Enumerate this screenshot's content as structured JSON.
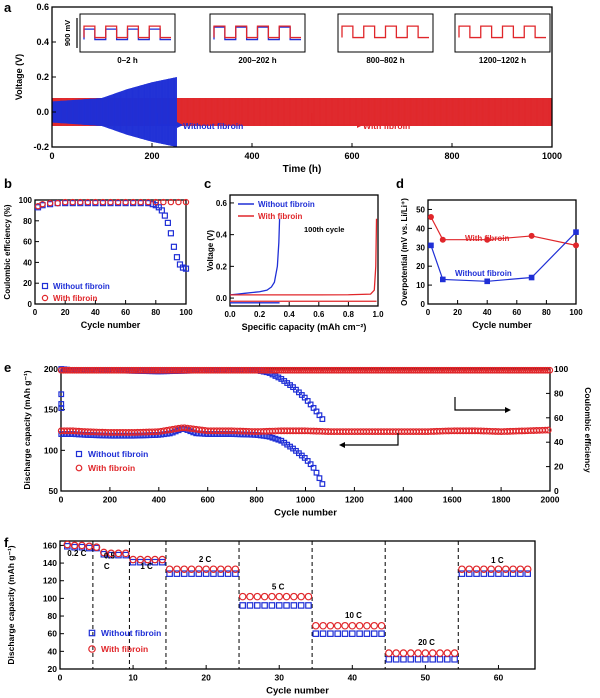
{
  "colors": {
    "without": "#1f2fd6",
    "with": "#e0262a"
  },
  "panels": {
    "a": {
      "letter": "a"
    },
    "b": {
      "letter": "b"
    },
    "c": {
      "letter": "c"
    },
    "d": {
      "letter": "d"
    },
    "e": {
      "letter": "e"
    },
    "f": {
      "letter": "f"
    }
  },
  "chart_data": [
    {
      "id": "a",
      "type": "line",
      "xlabel": "Time (h)",
      "ylabel": "Voltage (V)",
      "xlim": [
        0,
        1000
      ],
      "ylim": [
        -0.2,
        0.6
      ],
      "xticks": [
        "0",
        "200",
        "400",
        "600",
        "800",
        "1000"
      ],
      "yticks": [
        "-0.2",
        "0.0",
        "0.2",
        "0.4",
        "0.6"
      ],
      "series": [
        {
          "name": "Without fibroin",
          "color": "#1f2fd6",
          "x_end": 250,
          "envelope": {
            "x": [
              0,
              100,
              150,
              200,
              250
            ],
            "half_amplitude": [
              0.06,
              0.08,
              0.13,
              0.17,
              0.2
            ]
          }
        },
        {
          "name": "With fibroin",
          "color": "#e0262a",
          "x_end": 1000,
          "envelope": {
            "x": [
              0,
              1000
            ],
            "half_amplitude": [
              0.08,
              0.08
            ]
          }
        }
      ],
      "insets": [
        {
          "label": "0–2 h"
        },
        {
          "label": "200–202 h"
        },
        {
          "label": "800–802 h"
        },
        {
          "label": "1200–1202 h"
        }
      ],
      "inset_scale_label": "900 mV",
      "annotations": [
        "Without fibroin",
        "With fibroin"
      ]
    },
    {
      "id": "b",
      "type": "scatter",
      "xlabel": "Cycle number",
      "ylabel": "Coulombic efficiency (%)",
      "xlim": [
        0,
        100
      ],
      "ylim": [
        0,
        100
      ],
      "xticks": [
        "0",
        "20",
        "40",
        "60",
        "80",
        "100"
      ],
      "yticks": [
        "0",
        "20",
        "40",
        "60",
        "80",
        "100"
      ],
      "legend": [
        "Without fibroin",
        "With fibroin"
      ],
      "series": [
        {
          "name": "Without fibroin",
          "x": [
            2,
            5,
            10,
            15,
            20,
            25,
            30,
            35,
            40,
            45,
            50,
            55,
            60,
            65,
            70,
            75,
            78,
            80,
            82,
            84,
            86,
            88,
            90,
            92,
            94,
            96,
            98,
            100
          ],
          "y": [
            93,
            95,
            96,
            97,
            97,
            97,
            97,
            97,
            97,
            97,
            97,
            97,
            97,
            97,
            97,
            97,
            96,
            95,
            93,
            90,
            85,
            78,
            68,
            55,
            45,
            38,
            35,
            34
          ]
        },
        {
          "name": "With fibroin",
          "x": [
            2,
            5,
            10,
            15,
            20,
            25,
            30,
            35,
            40,
            45,
            50,
            55,
            60,
            65,
            70,
            75,
            80,
            85,
            90,
            95,
            100
          ],
          "y": [
            94,
            96,
            97,
            97,
            98,
            98,
            98,
            98,
            98,
            98,
            98,
            98,
            98,
            98,
            98,
            98,
            98,
            98,
            98,
            98,
            98
          ]
        }
      ]
    },
    {
      "id": "c",
      "type": "line",
      "xlabel": "Specific capacity (mAh cm⁻²)",
      "ylabel": "Voltage (V)",
      "xlim": [
        0,
        1.0
      ],
      "ylim": [
        -0.05,
        0.65
      ],
      "xticks": [
        "0.0",
        "0.2",
        "0.4",
        "0.6",
        "0.8",
        "1.0"
      ],
      "yticks": [
        "0.0",
        "0.2",
        "0.4",
        "0.6"
      ],
      "annotation": "100th cycle",
      "legend": [
        "Without fibroin",
        "With fibroin"
      ],
      "series": [
        {
          "name": "Without fibroin",
          "x": [
            0,
            0.05,
            0.1,
            0.15,
            0.2,
            0.25,
            0.28,
            0.3,
            0.32,
            0.33,
            0.335
          ],
          "y": [
            0.02,
            0.025,
            0.03,
            0.035,
            0.04,
            0.05,
            0.07,
            0.1,
            0.2,
            0.35,
            0.5
          ]
        },
        {
          "name": "With fibroin",
          "x": [
            0,
            0.2,
            0.4,
            0.6,
            0.8,
            0.95,
            0.975,
            0.985,
            0.99
          ],
          "y": [
            0.02,
            0.02,
            0.02,
            0.02,
            0.021,
            0.025,
            0.05,
            0.2,
            0.5
          ]
        },
        {
          "name": "Without fibroin (strip)",
          "x": [
            0,
            0.335
          ],
          "y": [
            -0.03,
            -0.03
          ]
        },
        {
          "name": "With fibroin (strip)",
          "x": [
            0,
            0.99
          ],
          "y": [
            -0.02,
            -0.02
          ]
        }
      ]
    },
    {
      "id": "d",
      "type": "line",
      "xlabel": "Cycle number",
      "ylabel": "Overpotential (mV vs. Li/Li⁺)",
      "xlim": [
        0,
        100
      ],
      "ylim": [
        0,
        55
      ],
      "xticks": [
        "0",
        "20",
        "40",
        "60",
        "80",
        "100"
      ],
      "yticks": [
        "0",
        "10",
        "20",
        "30",
        "40",
        "50"
      ],
      "series": [
        {
          "name": "With fibroin",
          "x": [
            2,
            10,
            40,
            70,
            100
          ],
          "y": [
            46,
            34,
            34,
            36,
            31
          ]
        },
        {
          "name": "Without fibroin",
          "x": [
            2,
            10,
            40,
            70,
            100
          ],
          "y": [
            31,
            13,
            12,
            14,
            38
          ]
        }
      ]
    },
    {
      "id": "e",
      "type": "scatter",
      "xlabel": "Cycle number",
      "ylabel": "Discharge capacity (mAh g⁻¹)",
      "y2label": "Coulombic efficiency",
      "xlim": [
        0,
        2000
      ],
      "ylim": [
        50,
        200
      ],
      "y2lim": [
        0,
        100
      ],
      "xticks": [
        "0",
        "200",
        "400",
        "600",
        "800",
        "1000",
        "1200",
        "1400",
        "1600",
        "1800",
        "2000"
      ],
      "yticks": [
        "50",
        "100",
        "150",
        "200"
      ],
      "y2ticks": [
        "0",
        "20",
        "40",
        "60",
        "80",
        "100"
      ],
      "legend": [
        "Without fibroin",
        "With fibroin"
      ],
      "series": [
        {
          "name": "Without fibroin capacity",
          "x": [
            1,
            50,
            100,
            200,
            300,
            400,
            450,
            500,
            550,
            600,
            700,
            800,
            850,
            900,
            950,
            1000,
            1030,
            1050,
            1070,
            1080
          ],
          "y": [
            120,
            120,
            119,
            118,
            118,
            119,
            121,
            127,
            121,
            120,
            120,
            119,
            117,
            112,
            102,
            90,
            80,
            70,
            58,
            52
          ]
        },
        {
          "name": "With fibroin capacity",
          "x": [
            1,
            50,
            100,
            200,
            300,
            400,
            500,
            600,
            700,
            800,
            900,
            1000,
            1100,
            1200,
            1300,
            1400,
            1500,
            1600,
            1700,
            1800,
            1900,
            2000
          ],
          "y": [
            124,
            124,
            123,
            122,
            122,
            123,
            128,
            124,
            124,
            123,
            124,
            124,
            123,
            123,
            123,
            123,
            123,
            124,
            124,
            123,
            124,
            125
          ]
        },
        {
          "name": "Without fibroin CE",
          "x": [
            1,
            50,
            200,
            400,
            600,
            800,
            850,
            900,
            950,
            1000,
            1050,
            1080
          ],
          "y": [
            100,
            99,
            99,
            98,
            99,
            99,
            97,
            92,
            85,
            76,
            64,
            56
          ]
        },
        {
          "name": "With fibroin CE",
          "x": [
            1,
            200,
            400,
            600,
            800,
            1000,
            1200,
            1400,
            1600,
            1800,
            2000
          ],
          "y": [
            99,
            99,
            99,
            99,
            99,
            99,
            99,
            99,
            99,
            99,
            99
          ]
        }
      ],
      "outliers": {
        "x": [
          1,
          1,
          1
        ],
        "y_ce": [
          52,
          57,
          69
        ]
      }
    },
    {
      "id": "f",
      "type": "scatter",
      "xlabel": "Cycle number",
      "ylabel": "Discharge capacity (mAh g⁻¹)",
      "xlim": [
        0,
        65
      ],
      "ylim": [
        20,
        165
      ],
      "xticks": [
        "0",
        "10",
        "20",
        "30",
        "40",
        "50",
        "60"
      ],
      "yticks": [
        "20",
        "40",
        "60",
        "80",
        "100",
        "120",
        "140",
        "160"
      ],
      "rate_labels": [
        {
          "text": "0.2 C",
          "x": 1,
          "y": 148
        },
        {
          "text": "0.5",
          "x": 6,
          "y": 145
        },
        {
          "text": "C",
          "x": 6,
          "y": 133
        },
        {
          "text": "1 C",
          "x": 11,
          "y": 133
        },
        {
          "text": "2 C",
          "x": 19,
          "y": 141
        },
        {
          "text": "5 C",
          "x": 29,
          "y": 110
        },
        {
          "text": "10 C",
          "x": 39,
          "y": 78
        },
        {
          "text": "20 C",
          "x": 49,
          "y": 47
        },
        {
          "text": "1 C",
          "x": 59,
          "y": 140
        }
      ],
      "dividers_x": [
        4.5,
        9.5,
        14.5,
        24.5,
        34.5,
        44.5,
        54.5
      ],
      "legend": [
        "Without fibroin",
        "With fibroin"
      ],
      "series": [
        {
          "name": "Without fibroin",
          "segments": [
            {
              "x": [
                1,
                2,
                3,
                4,
                5
              ],
              "y": [
                159,
                158,
                158,
                157,
                157
              ]
            },
            {
              "x": [
                6,
                7,
                8,
                9
              ],
              "y": [
                150,
                149,
                149,
                149
              ]
            },
            {
              "x": [
                10,
                11,
                12,
                13,
                14
              ],
              "y": [
                141,
                141,
                141,
                141,
                141
              ]
            },
            {
              "x": [
                15,
                16,
                17,
                18,
                19,
                20,
                21,
                22,
                23,
                24
              ],
              "y": [
                128,
                128,
                128,
                128,
                128,
                128,
                128,
                128,
                128,
                128
              ]
            },
            {
              "x": [
                25,
                26,
                27,
                28,
                29,
                30,
                31,
                32,
                33,
                34
              ],
              "y": [
                92,
                92,
                92,
                92,
                92,
                92,
                92,
                92,
                92,
                92
              ]
            },
            {
              "x": [
                35,
                36,
                37,
                38,
                39,
                40,
                41,
                42,
                43,
                44
              ],
              "y": [
                60,
                60,
                60,
                60,
                60,
                60,
                60,
                60,
                60,
                60
              ]
            },
            {
              "x": [
                45,
                46,
                47,
                48,
                49,
                50,
                51,
                52,
                53,
                54
              ],
              "y": [
                31,
                31,
                31,
                31,
                31,
                31,
                31,
                31,
                31,
                31
              ]
            },
            {
              "x": [
                55,
                56,
                57,
                58,
                59,
                60,
                61,
                62,
                63,
                64
              ],
              "y": [
                128,
                128,
                128,
                128,
                128,
                128,
                128,
                128,
                128,
                128
              ]
            }
          ]
        },
        {
          "name": "With fibroin",
          "segments": [
            {
              "x": [
                1,
                2,
                3,
                4,
                5
              ],
              "y": [
                161,
                160,
                160,
                159,
                158
              ]
            },
            {
              "x": [
                6,
                7,
                8,
                9
              ],
              "y": [
                152,
                151,
                151,
                151
              ]
            },
            {
              "x": [
                10,
                11,
                12,
                13,
                14
              ],
              "y": [
                144,
                144,
                144,
                144,
                144
              ]
            },
            {
              "x": [
                15,
                16,
                17,
                18,
                19,
                20,
                21,
                22,
                23,
                24
              ],
              "y": [
                133,
                133,
                133,
                133,
                133,
                133,
                133,
                133,
                133,
                133
              ]
            },
            {
              "x": [
                25,
                26,
                27,
                28,
                29,
                30,
                31,
                32,
                33,
                34
              ],
              "y": [
                102,
                102,
                102,
                102,
                102,
                102,
                102,
                102,
                102,
                102
              ]
            },
            {
              "x": [
                35,
                36,
                37,
                38,
                39,
                40,
                41,
                42,
                43,
                44
              ],
              "y": [
                69,
                69,
                69,
                69,
                69,
                69,
                69,
                69,
                69,
                69
              ]
            },
            {
              "x": [
                45,
                46,
                47,
                48,
                49,
                50,
                51,
                52,
                53,
                54
              ],
              "y": [
                38,
                38,
                38,
                38,
                38,
                38,
                38,
                38,
                38,
                38
              ]
            },
            {
              "x": [
                55,
                56,
                57,
                58,
                59,
                60,
                61,
                62,
                63,
                64
              ],
              "y": [
                133,
                133,
                133,
                133,
                133,
                133,
                133,
                133,
                133,
                133
              ]
            }
          ]
        }
      ]
    }
  ]
}
